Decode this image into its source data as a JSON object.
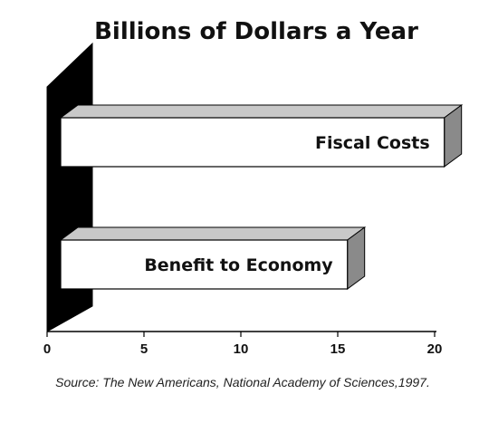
{
  "chart_data": {
    "type": "bar",
    "orientation": "horizontal",
    "style": "3d",
    "title": "Billions of Dollars a Year",
    "categories": [
      "Fiscal Costs",
      "Benefit to Economy"
    ],
    "values": [
      20.5,
      15.5
    ],
    "xlim": [
      0,
      20
    ],
    "x_ticks": [
      "0",
      "5",
      "10",
      "15",
      "20"
    ],
    "xlabel": "",
    "ylabel": "",
    "grid": false,
    "legend": "none",
    "source": "Source: The New Americans, National Academy of Sciences,1997.",
    "colors": {
      "bar_face": "#ffffff",
      "bar_top": "#c8c8c8",
      "bar_side": "#8a8a8a",
      "wall": "#000000",
      "outline": "#000000"
    }
  }
}
